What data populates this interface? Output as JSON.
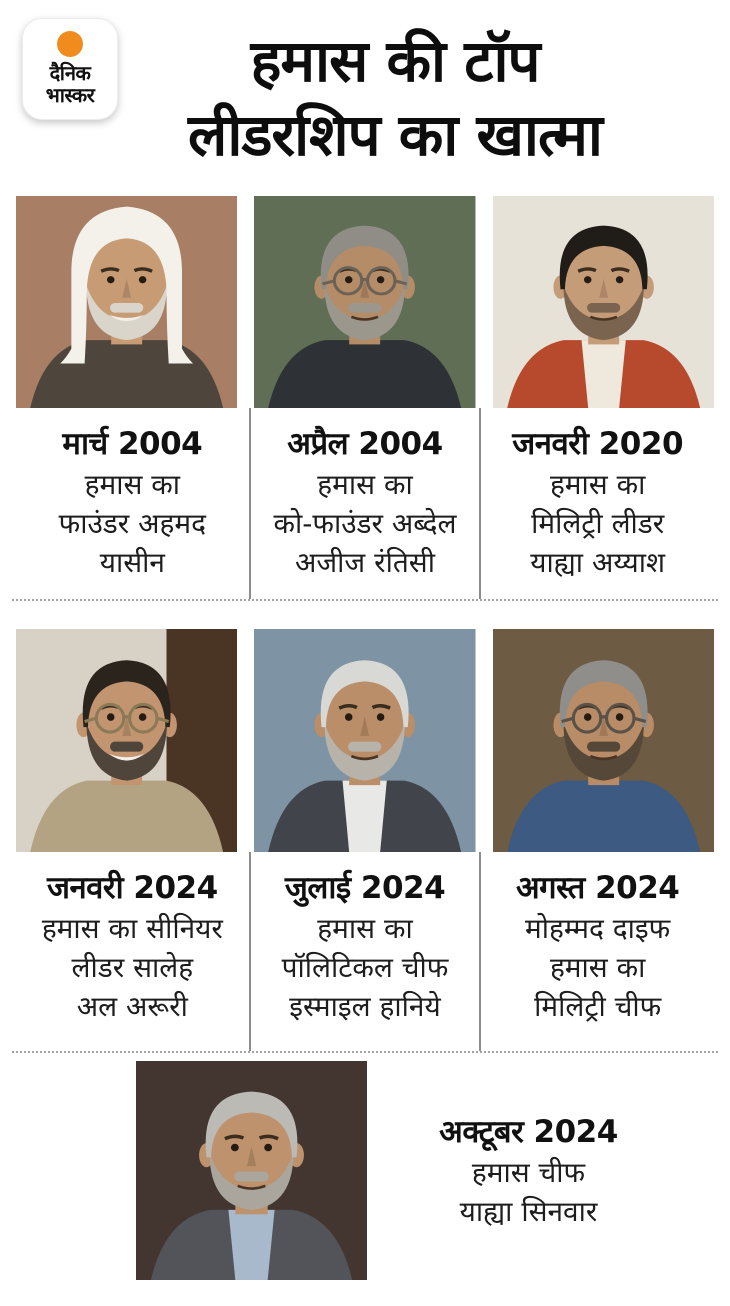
{
  "page": {
    "background": "#ffffff",
    "text_color": "#141414",
    "divider_color": "#8c8c8c",
    "dotted_color": "#a2a2a2"
  },
  "logo": {
    "line1": "दैनिक",
    "line2": "भास्कर",
    "dot_color": "#f08c1e"
  },
  "header": {
    "title_line1": "हमास की टॉप",
    "title_line2": "लीडरशिप का खात्मा"
  },
  "people": [
    {
      "id": "ahmed-yassin",
      "date": "मार्च 2004",
      "lines": [
        "हमास का",
        "फाउंडर अहमद",
        "यासीन"
      ],
      "photo": {
        "bg": "#a87e64",
        "skin": "#c79b74",
        "beard": "#d9d5cb",
        "cloth": "#4e463c",
        "headscarf": "#f4f1ea",
        "smile": true
      }
    },
    {
      "id": "abdel-aziz-rantisi",
      "date": "अप्रैल 2004",
      "lines": [
        "हमास का",
        "को-फाउंडर अब्देल",
        "अजीज रंतिसी"
      ],
      "photo": {
        "bg": "#5f6e55",
        "skin": "#b58c68",
        "hair": "#8f8d86",
        "beard": "#9b978c",
        "cloth": "#2e3135",
        "glasses": "#6b6257",
        "smile": false
      }
    },
    {
      "id": "yahya-ayyash",
      "date": "जनवरी 2020",
      "lines": [
        "हमास का",
        "मिलिट्री लीडर",
        "याह्या अय्याश"
      ],
      "photo": {
        "bg": "#e7e2d8",
        "skin": "#c59c78",
        "hair": "#201c18",
        "beard": "#7a6450",
        "cloth": "#b7492c",
        "shirt": "#efe8dc",
        "smile": false
      }
    },
    {
      "id": "saleh-al-arouri",
      "date": "जनवरी 2024",
      "lines": [
        "हमास का सीनियर",
        "लीडर सालेह",
        "अल अरूरी"
      ],
      "photo": {
        "bg": "#d8d2c6",
        "bg2": "#4a3424",
        "skin": "#c29570",
        "hair": "#2b241d",
        "beard": "#4f453a",
        "cloth": "#b3a383",
        "glasses": "#8a7a55",
        "smile": true
      }
    },
    {
      "id": "ismail-haniyeh",
      "date": "जुलाई 2024",
      "lines": [
        "हमास का",
        "पॉलिटिकल चीफ",
        "इस्माइल हानिये"
      ],
      "photo": {
        "bg": "#7e93a4",
        "skin": "#b98e68",
        "hair": "#d8d8d5",
        "beard": "#b7b3aa",
        "cloth": "#41454b",
        "shirt": "#e8e8e6",
        "smile": false
      }
    },
    {
      "id": "mohammed-deif",
      "date": "अगस्त 2024",
      "lines": [
        "मोहम्मद दाइफ",
        "हमास का",
        "मिलिट्री चीफ"
      ],
      "photo": {
        "bg": "#6d5b43",
        "skin": "#b78c66",
        "hair": "#8f8e8a",
        "beard": "#564838",
        "cloth": "#3c5a82",
        "glasses": "#5a5148",
        "smile": false
      }
    },
    {
      "id": "yahya-sinwar",
      "date": "अक्टूबर 2024",
      "lines": [
        "हमास चीफ",
        "याह्या सिनवार"
      ],
      "photo": {
        "bg": "#433630",
        "skin": "#bd926c",
        "hair": "#bcbab4",
        "beard": "#aaa69d",
        "cloth": "#53535a",
        "shirt": "#a7b9cb",
        "smile": false
      }
    }
  ]
}
